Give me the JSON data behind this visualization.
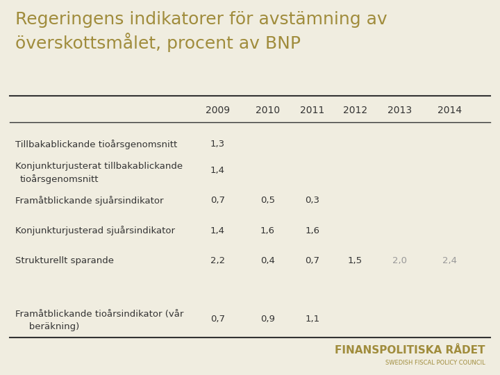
{
  "title_line1": "Regeringens indikatorer för avstämning av",
  "title_line2": "överskottsmålet, procent av BNP",
  "title_color": "#a08c3c",
  "title_fontsize": 18,
  "background_color": "#f0ede0",
  "columns": [
    "2009",
    "2010",
    "2011",
    "2012",
    "2013",
    "2014"
  ],
  "rows": [
    {
      "label": "Tillbakablickande tioårsgenomsnitt",
      "label2": "",
      "values": [
        "1,3",
        "",
        "",
        "",
        "",
        ""
      ],
      "gray": [
        false,
        false,
        false,
        false,
        false,
        false
      ]
    },
    {
      "label": "Konjunkturjusterat tillbakablickande",
      "label2": "tioårsgenomsnitt",
      "values": [
        "1,4",
        "",
        "",
        "",
        "",
        ""
      ],
      "gray": [
        false,
        false,
        false,
        false,
        false,
        false
      ]
    },
    {
      "label": "Framåtblickande sjuårsindikator",
      "label2": "",
      "values": [
        "0,7",
        "0,5",
        "0,3",
        "",
        "",
        ""
      ],
      "gray": [
        false,
        false,
        false,
        false,
        false,
        false
      ]
    },
    {
      "label": "Konjunkturjusterad sjuårsindikator",
      "label2": "",
      "values": [
        "1,4",
        "1,6",
        "1,6",
        "",
        "",
        ""
      ],
      "gray": [
        false,
        false,
        false,
        false,
        false,
        false
      ]
    },
    {
      "label": "Strukturellt sparande",
      "label2": "",
      "values": [
        "2,2",
        "0,4",
        "0,7",
        "1,5",
        "2,0",
        "2,4"
      ],
      "gray": [
        false,
        false,
        false,
        false,
        true,
        true
      ]
    },
    {
      "label": "Framåtblickande tioårsindikator (vår",
      "label2": "   beräkning)",
      "values": [
        "0,7",
        "0,9",
        "1,1",
        "",
        "",
        ""
      ],
      "gray": [
        false,
        false,
        false,
        false,
        false,
        false
      ]
    }
  ],
  "col_header_color": "#333333",
  "cell_text_color": "#333333",
  "gray_text_color": "#999999",
  "row_label_color": "#333333",
  "separator_color": "#333333",
  "logo_text": "FINANSPOLITISKA RÅDET",
  "logo_sub": "SWEDISH FISCAL POLICY COUNCIL",
  "logo_color": "#a08c3c"
}
